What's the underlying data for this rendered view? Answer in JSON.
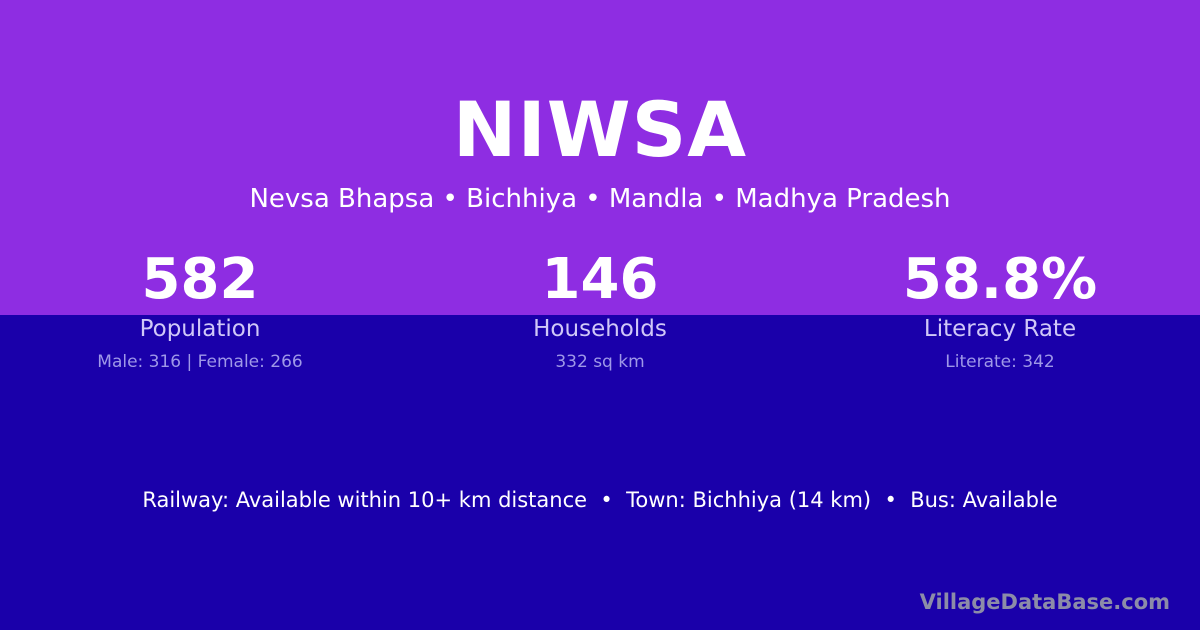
{
  "title": "NIWSA",
  "subtitle": "Nevsa Bhapsa • Bichhiya • Mandla • Madhya Pradesh",
  "stats": [
    {
      "value": "582",
      "label": "Population",
      "detail": "Male: 316 | Female: 266"
    },
    {
      "value": "146",
      "label": "Households",
      "detail": "332 sq km"
    },
    {
      "value": "58.8%",
      "label": "Literacy Rate",
      "detail": "Literate: 342"
    }
  ],
  "info": "Railway: Available within 10+ km distance  •  Town: Bichhiya (14 km)  •  Bus: Available",
  "brand": "VillageDataBase.com",
  "colors": {
    "top_background": "#8e2de2",
    "bottom_background": "#1a00aa"
  }
}
